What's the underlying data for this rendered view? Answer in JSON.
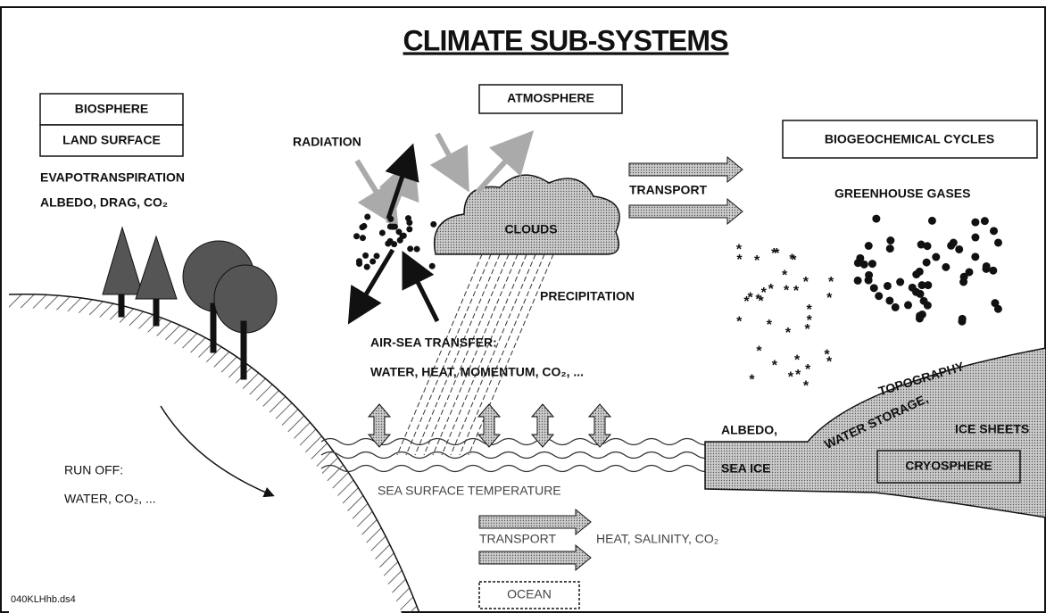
{
  "title": "CLIMATE SUB-SYSTEMS",
  "labels": {
    "biosphere": "BIOSPHERE",
    "land_surface": "LAND SURFACE",
    "evapotranspiration": "EVAPOTRANSPIRATION",
    "albedo_drag": "ALBEDO, DRAG, CO₂",
    "atmosphere": "ATMOSPHERE",
    "radiation": "RADIATION",
    "clouds": "CLOUDS",
    "transport_atmos": "TRANSPORT",
    "biogeochemical": "BIOGEOCHEMICAL CYCLES",
    "greenhouse": "GREENHOUSE GASES",
    "precipitation": "PRECIPITATION",
    "air_sea_transfer": "AIR-SEA TRANSFER:",
    "air_sea_items": "WATER, HEAT, MOMENTUM, CO₂, ...",
    "topography": "TOPOGRAPHY",
    "water_storage": "WATER STORAGE,",
    "albedo": "ALBEDO,",
    "ice_sheets": "ICE SHEETS",
    "sea_ice": "SEA ICE",
    "cryosphere": "CRYOSPHERE",
    "run_off": "RUN OFF:",
    "run_off_items": "WATER, CO₂, ...",
    "sst": "SEA SURFACE TEMPERATURE",
    "transport_ocean": "TRANSPORT",
    "ocean_items": "HEAT, SALINITY, CO₂",
    "ocean": "OCEAN",
    "file_id": "040KLHhb.ds4"
  }
}
